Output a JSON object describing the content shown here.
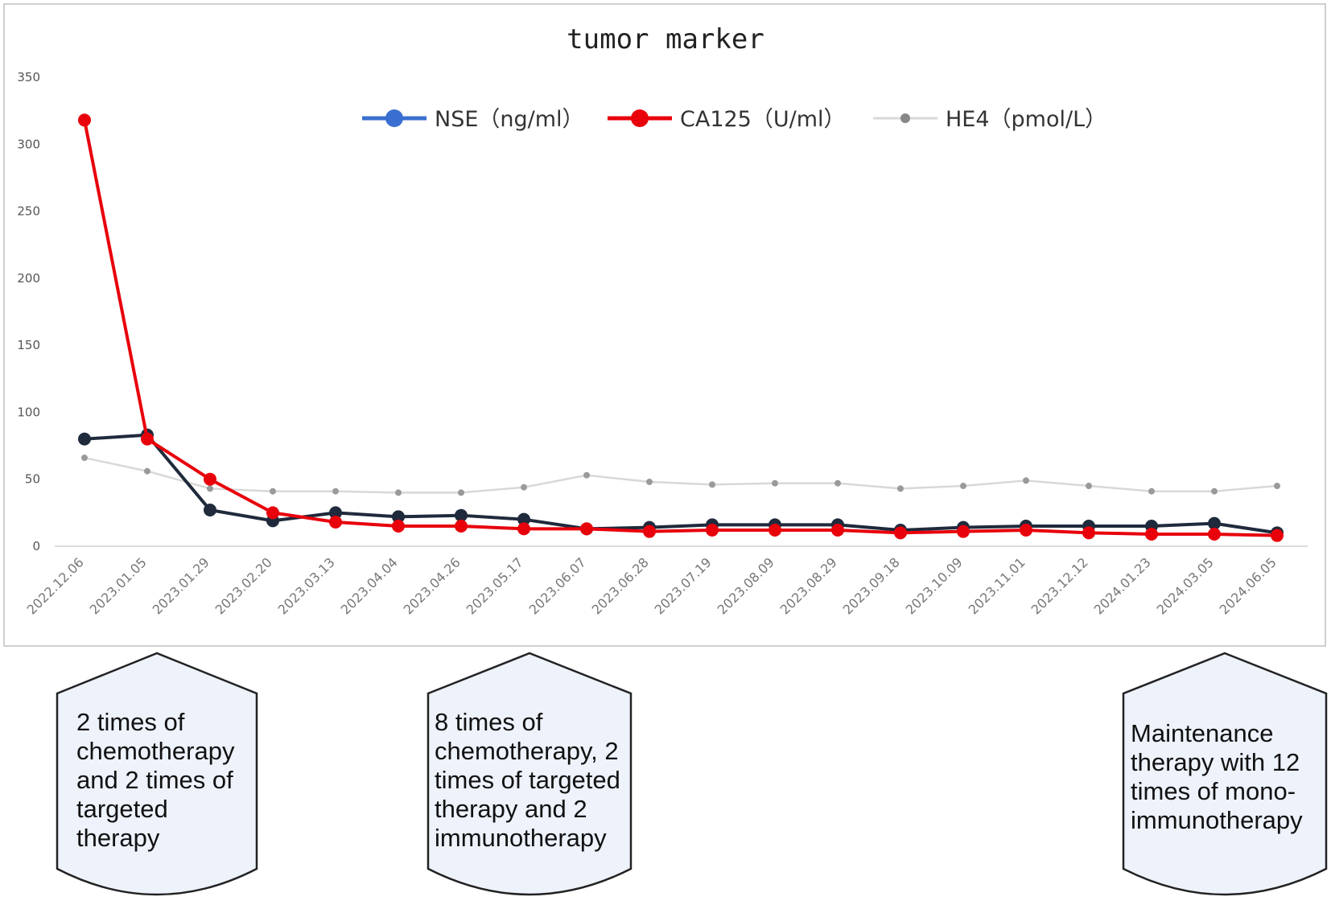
{
  "chart_data": {
    "type": "line",
    "title": "tumor marker",
    "xlabel": "",
    "ylabel": "",
    "ylim": [
      0,
      350
    ],
    "yticks": [
      0,
      50,
      100,
      150,
      200,
      250,
      300,
      350
    ],
    "grid": false,
    "legend_position": "top",
    "categories": [
      "2022.12.06",
      "2023.01.05",
      "2023.01.29",
      "2023.02.20",
      "2023.03.13",
      "2023.04.04",
      "2023.04.26",
      "2023.05.17",
      "2023.06.07",
      "2023.06.28",
      "2023.07.19",
      "2023.08.09",
      "2023.08.29",
      "2023.09.18",
      "2023.10.09",
      "2023.11.01",
      "2023.12.12",
      "2024.01.23",
      "2024.03.05",
      "2024.06.05"
    ],
    "series": [
      {
        "name": "NSE（ng/ml）",
        "color": "#1f2a3c",
        "legend_color": "#3a6fd0",
        "marker": "large",
        "values": [
          80,
          83,
          27,
          19,
          25,
          22,
          23,
          20,
          13,
          14,
          16,
          16,
          16,
          12,
          14,
          15,
          15,
          15,
          17,
          10
        ]
      },
      {
        "name": "CA125（U/ml）",
        "color": "#e8000b",
        "legend_color": "#e8000b",
        "marker": "large",
        "values": [
          318,
          80,
          50,
          25,
          18,
          15,
          15,
          13,
          13,
          11,
          12,
          12,
          12,
          10,
          11,
          12,
          10,
          9,
          9,
          8
        ]
      },
      {
        "name": "HE4（pmol/L）",
        "color": "#d8d8d8",
        "legend_color": "#d8d8d8",
        "marker": "small",
        "values": [
          66,
          56,
          43,
          41,
          41,
          40,
          40,
          44,
          53,
          48,
          46,
          47,
          47,
          43,
          45,
          49,
          45,
          41,
          41,
          45
        ]
      }
    ]
  },
  "annotations": [
    {
      "lines": [
        "2 times of",
        "chemotherapy",
        "and 2 times of",
        "targeted",
        "therapy"
      ]
    },
    {
      "lines": [
        "8 times of",
        "chemotherapy, 2",
        "times of targeted",
        "therapy and 2",
        "immunotherapy"
      ]
    },
    {
      "lines": [
        "Maintenance",
        "therapy with 12",
        "times of mono-",
        "immunotherapy"
      ]
    }
  ]
}
